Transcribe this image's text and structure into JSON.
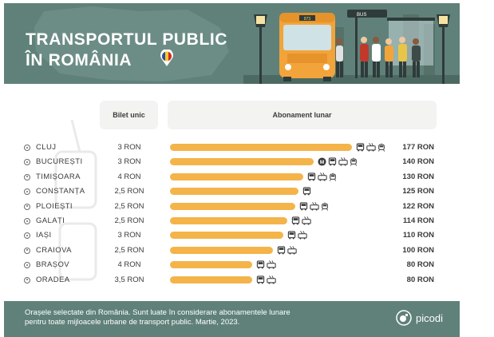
{
  "header": {
    "title_line1": "TRANSPORTUL PUBLIC",
    "title_line2": "ÎN ROMÂNIA",
    "bus_number": "873",
    "stop_sign": "BUS"
  },
  "columns": {
    "ticket_header": "Bilet unic",
    "monthly_header": "Abonament lunar"
  },
  "chart_data": {
    "type": "bar",
    "categories": [
      "CLUJ",
      "BUCUREȘTI",
      "TIMIȘOARA",
      "CONSTANȚA",
      "PLOIEȘTI",
      "GALAȚI",
      "IAȘI",
      "CRAIOVA",
      "BRAȘOV",
      "ORADEA"
    ],
    "series": [
      {
        "values": [
          177,
          140,
          130,
          125,
          122,
          114,
          110,
          100,
          80,
          80
        ]
      }
    ],
    "single_ticket": [
      "3 RON",
      "3 RON",
      "4 RON",
      "2,5 RON",
      "2,5 RON",
      "2,5 RON",
      "3 RON",
      "2,5 RON",
      "4 RON",
      "3,5 RON"
    ],
    "value_labels": [
      "177 RON",
      "140 RON",
      "130 RON",
      "125 RON",
      "122 RON",
      "114 RON",
      "110 RON",
      "100 RON",
      "80 RON",
      "80 RON"
    ],
    "transport_modes": [
      [
        "bus",
        "trolleybus",
        "tram"
      ],
      [
        "metro",
        "bus",
        "trolleybus",
        "tram"
      ],
      [
        "bus",
        "trolleybus",
        "tram"
      ],
      [
        "bus"
      ],
      [
        "bus",
        "trolleybus",
        "tram"
      ],
      [
        "bus",
        "trolleybus"
      ],
      [
        "bus",
        "trolleybus"
      ],
      [
        "bus",
        "trolleybus"
      ],
      [
        "bus",
        "trolleybus"
      ],
      [
        "bus",
        "trolleybus"
      ]
    ],
    "xlim": [
      0,
      177
    ],
    "grid": false
  },
  "colors": {
    "header_bg": "#5f8179",
    "bar": "#f4b44a",
    "text": "#3a3a3a"
  },
  "footer": {
    "note_line1": "Orașele selectate din România. Sunt luate în considerare abonamentele lunare",
    "note_line2": "pentru toate mijloacele urbane de transport public. Martie, 2023.",
    "brand": "picodi"
  }
}
